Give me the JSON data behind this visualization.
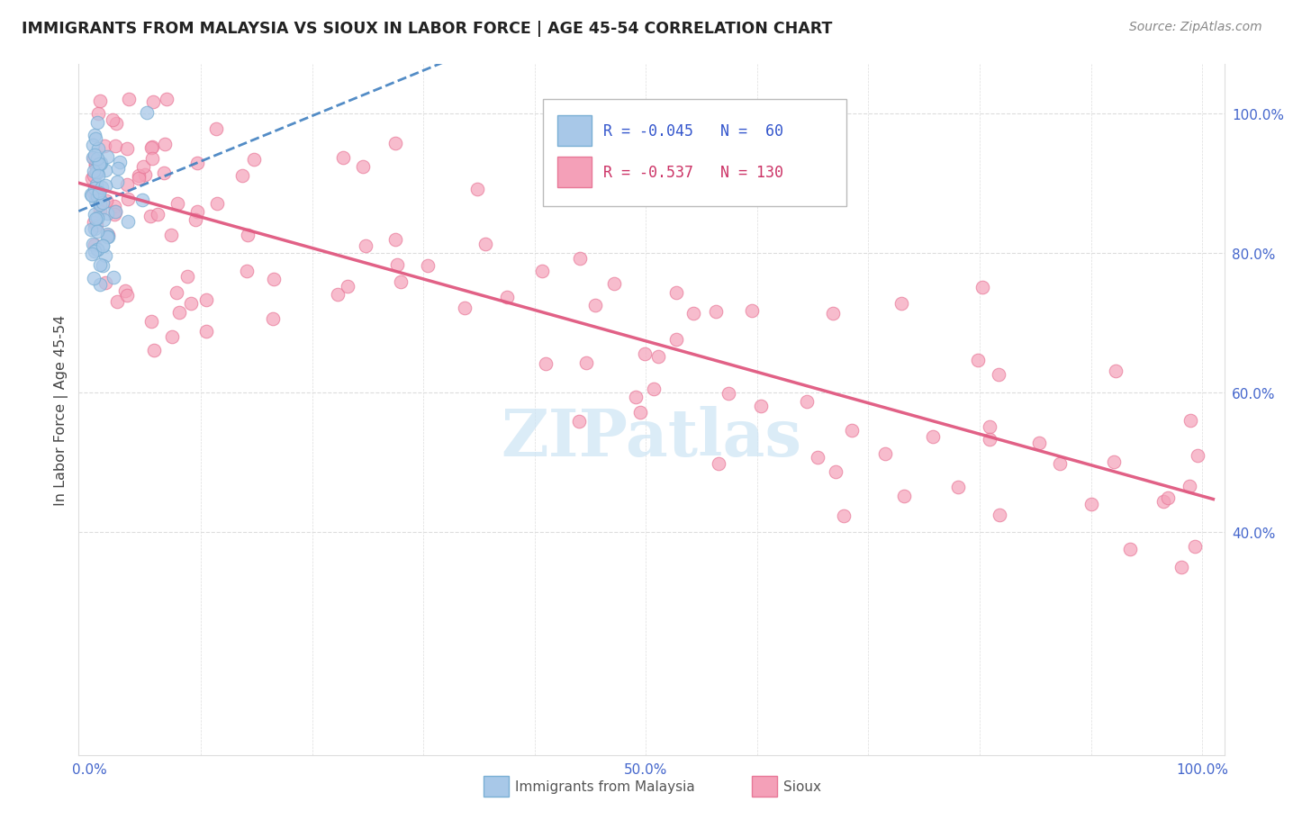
{
  "title": "IMMIGRANTS FROM MALAYSIA VS SIOUX IN LABOR FORCE | AGE 45-54 CORRELATION CHART",
  "source": "Source: ZipAtlas.com",
  "ylabel": "In Labor Force | Age 45-54",
  "legend_blue_r": "-0.045",
  "legend_blue_n": "60",
  "legend_pink_r": "-0.537",
  "legend_pink_n": "130",
  "blue_scatter_color": "#a8c8e8",
  "blue_edge_color": "#7aafd4",
  "pink_scatter_color": "#f4a0b8",
  "pink_edge_color": "#e87898",
  "blue_line_color": "#4080c0",
  "pink_line_color": "#e05880",
  "watermark_color": "#cce4f4",
  "tick_color": "#4466cc",
  "grid_color": "#dddddd",
  "title_color": "#222222",
  "source_color": "#888888",
  "legend_text_blue": "#3355cc",
  "legend_text_pink": "#cc3366",
  "bottom_legend_color": "#555555",
  "x_tick_labels": [
    "0.0%",
    "",
    "",
    "",
    "",
    "50.0%",
    "",
    "",
    "",
    "",
    "100.0%"
  ],
  "y_tick_labels": [
    "100.0%",
    "80.0%",
    "60.0%",
    "40.0%"
  ],
  "y_ticks": [
    1.0,
    0.8,
    0.6,
    0.4
  ]
}
